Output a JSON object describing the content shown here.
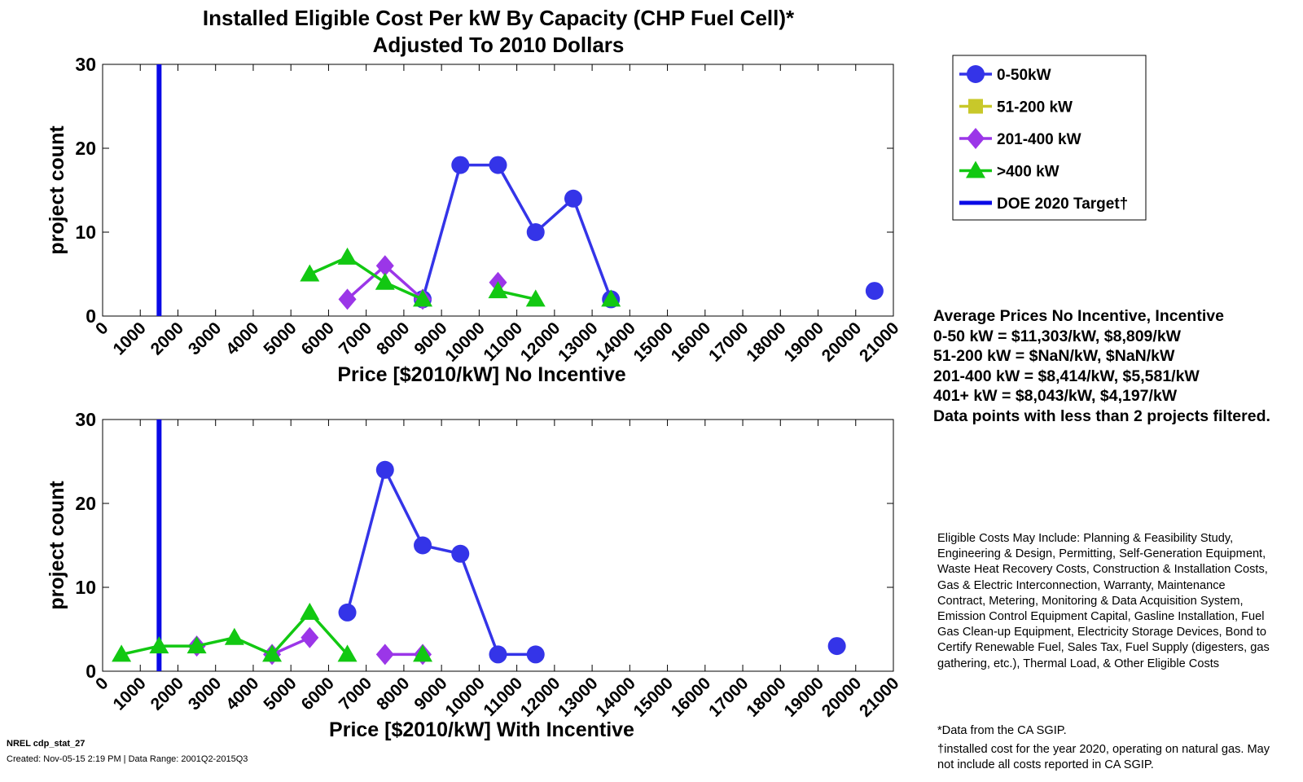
{
  "figure": {
    "title_line1": "Installed Eligible Cost Per kW By Capacity (CHP Fuel Cell)*",
    "title_line2": "Adjusted To 2010 Dollars"
  },
  "legend": {
    "entries": [
      {
        "label": "0-50kW",
        "color": "#3434e8",
        "marker": "circle"
      },
      {
        "label": "51-200 kW",
        "color": "#c8c82a",
        "marker": "square"
      },
      {
        "label": "201-400 kW",
        "color": "#9b36e8",
        "marker": "diamond"
      },
      {
        "label": ">400 kW",
        "color": "#12c812",
        "marker": "triangle"
      },
      {
        "label": "DOE 2020 Target†",
        "color": "#0a0ae6",
        "marker": "line"
      }
    ]
  },
  "averages": {
    "heading": "Average Prices No Incentive, Incentive",
    "line1": "0-50 kW = $11,303/kW, $8,809/kW",
    "line2": "51-200 kW = $NaN/kW, $NaN/kW",
    "line3": "201-400 kW = $8,414/kW, $5,581/kW",
    "line4": "401+ kW = $8,043/kW, $4,197/kW",
    "filter_note": "Data points with less than 2 projects filtered."
  },
  "eligible_costs_note": "Eligible Costs May Include: Planning & Feasibility Study, Engineering & Design, Permitting, Self-Generation Equipment, Waste Heat Recovery Costs, Construction & Installation Costs, Gas & Electric Interconnection, Warranty, Maintenance Contract, Metering, Monitoring & Data Acquisition System, Emission Control Equipment Capital, Gasline Installation, Fuel Gas Clean-up Equipment, Electricity Storage Devices, Bond to Certify Renewable Fuel, Sales Tax, Fuel Supply (digesters, gas gathering, etc.), Thermal Load, & Other Eligible Costs",
  "footnotes": {
    "data_source": "*Data from the CA SGIP.",
    "target_note": "†installed cost for the year 2020, operating on natural gas. May not include all costs reported in CA SGIP."
  },
  "nrel": {
    "id": "NREL cdp_stat_27",
    "created": "Created: Nov-05-15  2:19 PM | Data Range: 2001Q2-2015Q3"
  },
  "chart_data": [
    {
      "type": "line",
      "xlabel": "Price [$2010/kW] No Incentive",
      "ylabel": "project count",
      "xlim": [
        0,
        21000
      ],
      "ylim": [
        0,
        30
      ],
      "xticks": [
        "0",
        "1000",
        "2000",
        "3000",
        "4000",
        "5000",
        "6000",
        "7000",
        "8000",
        "9000",
        "10000",
        "11000",
        "12000",
        "13000",
        "14000",
        "15000",
        "16000",
        "17000",
        "18000",
        "19000",
        "20000",
        "21000"
      ],
      "yticks": [
        "0",
        "10",
        "20",
        "30"
      ],
      "target_x": 1500,
      "series": [
        {
          "name": "0-50kW",
          "x": [
            8500,
            9500,
            10500,
            11500,
            12500,
            13500,
            20500
          ],
          "y": [
            2,
            18,
            18,
            10,
            14,
            2,
            3
          ],
          "segments": [
            [
              0,
              5
            ],
            [
              6,
              6
            ]
          ]
        },
        {
          "name": "51-200 kW",
          "x": [],
          "y": [],
          "segments": []
        },
        {
          "name": "201-400 kW",
          "x": [
            6500,
            7500,
            8500,
            10500
          ],
          "y": [
            2,
            6,
            2,
            4
          ],
          "segments": [
            [
              0,
              2
            ],
            [
              3,
              3
            ]
          ]
        },
        {
          "name": ">400 kW",
          "x": [
            5500,
            6500,
            7500,
            8500,
            10500,
            11500,
            13500
          ],
          "y": [
            5,
            7,
            4,
            2,
            3,
            2,
            2
          ],
          "segments": [
            [
              0,
              3
            ],
            [
              4,
              5
            ],
            [
              6,
              6
            ]
          ]
        }
      ]
    },
    {
      "type": "line",
      "xlabel": "Price [$2010/kW] With Incentive",
      "ylabel": "project count",
      "xlim": [
        0,
        21000
      ],
      "ylim": [
        0,
        30
      ],
      "xticks": [
        "0",
        "1000",
        "2000",
        "3000",
        "4000",
        "5000",
        "6000",
        "7000",
        "8000",
        "9000",
        "10000",
        "11000",
        "12000",
        "13000",
        "14000",
        "15000",
        "16000",
        "17000",
        "18000",
        "19000",
        "20000",
        "21000"
      ],
      "yticks": [
        "0",
        "10",
        "20",
        "30"
      ],
      "target_x": 1500,
      "series": [
        {
          "name": "0-50kW",
          "x": [
            6500,
            7500,
            8500,
            9500,
            10500,
            11500,
            19500
          ],
          "y": [
            7,
            24,
            15,
            14,
            2,
            2,
            3
          ],
          "segments": [
            [
              0,
              5
            ],
            [
              6,
              6
            ]
          ]
        },
        {
          "name": "51-200 kW",
          "x": [],
          "y": [],
          "segments": []
        },
        {
          "name": "201-400 kW",
          "x": [
            2500,
            4500,
            5500,
            7500,
            8500
          ],
          "y": [
            3,
            2,
            4,
            2,
            2
          ],
          "segments": [
            [
              0,
              0
            ],
            [
              1,
              2
            ],
            [
              3,
              4
            ]
          ]
        },
        {
          "name": ">400 kW",
          "x": [
            500,
            1500,
            2500,
            3500,
            4500,
            5500,
            6500,
            8500
          ],
          "y": [
            2,
            3,
            3,
            4,
            2,
            7,
            2,
            2
          ],
          "segments": [
            [
              0,
              6
            ],
            [
              7,
              7
            ]
          ]
        }
      ]
    }
  ]
}
